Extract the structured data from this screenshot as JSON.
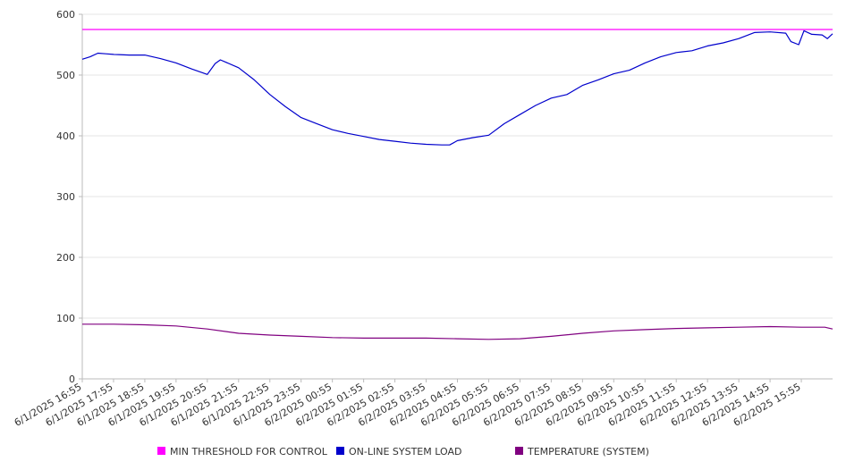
{
  "chart_data": {
    "type": "line",
    "title": "",
    "xlabel": "",
    "ylabel": "",
    "ylim": [
      0,
      600
    ],
    "yticks": [
      0,
      100,
      200,
      300,
      400,
      500,
      600
    ],
    "grid": true,
    "legend_position": "bottom",
    "x_tick_labels": [
      "6/1/2025 16:55",
      "6/1/2025 17:55",
      "6/1/2025 18:55",
      "6/1/2025 19:55",
      "6/1/2025 20:55",
      "6/1/2025 21:55",
      "6/1/2025 22:55",
      "6/1/2025 23:55",
      "6/2/2025 00:55",
      "6/2/2025 01:55",
      "6/2/2025 02:55",
      "6/2/2025 03:55",
      "6/2/2025 04:55",
      "6/2/2025 05:55",
      "6/2/2025 06:55",
      "6/2/2025 07:55",
      "6/2/2025 08:55",
      "6/2/2025 09:55",
      "6/2/2025 10:55",
      "6/2/2025 11:55",
      "6/2/2025 12:55",
      "6/2/2025 13:55",
      "6/2/2025 14:55",
      "6/2/2025 15:55"
    ],
    "x_start": "6/1/2025 16:55",
    "x_end": "6/2/2025 16:55",
    "series": [
      {
        "name": "MIN THRESHOLD FOR CONTROL",
        "color": "#ff00ff",
        "points": [
          [
            "6/1/2025 16:55",
            575
          ],
          [
            "6/2/2025 16:55",
            575
          ]
        ]
      },
      {
        "name": "ON-LINE SYSTEM LOAD",
        "color": "#0000cc",
        "points": [
          [
            "6/1/2025 16:55",
            526
          ],
          [
            "6/1/2025 17:10",
            530
          ],
          [
            "6/1/2025 17:25",
            536
          ],
          [
            "6/1/2025 17:40",
            535
          ],
          [
            "6/1/2025 17:55",
            534
          ],
          [
            "6/1/2025 18:25",
            533
          ],
          [
            "6/1/2025 18:55",
            533
          ],
          [
            "6/1/2025 19:25",
            527
          ],
          [
            "6/1/2025 19:55",
            520
          ],
          [
            "6/1/2025 20:25",
            510
          ],
          [
            "6/1/2025 20:55",
            501
          ],
          [
            "6/1/2025 21:10",
            519
          ],
          [
            "6/1/2025 21:20",
            525
          ],
          [
            "6/1/2025 21:55",
            512
          ],
          [
            "6/1/2025 22:25",
            492
          ],
          [
            "6/1/2025 22:55",
            468
          ],
          [
            "6/1/2025 23:25",
            448
          ],
          [
            "6/1/2025 23:55",
            430
          ],
          [
            "6/2/2025 00:25",
            420
          ],
          [
            "6/2/2025 00:55",
            410
          ],
          [
            "6/2/2025 01:25",
            404
          ],
          [
            "6/2/2025 01:55",
            399
          ],
          [
            "6/2/2025 02:25",
            394
          ],
          [
            "6/2/2025 02:55",
            391
          ],
          [
            "6/2/2025 03:25",
            388
          ],
          [
            "6/2/2025 03:55",
            386
          ],
          [
            "6/2/2025 04:25",
            385
          ],
          [
            "6/2/2025 04:40",
            385
          ],
          [
            "6/2/2025 04:55",
            392
          ],
          [
            "6/2/2025 05:25",
            397
          ],
          [
            "6/2/2025 05:55",
            401
          ],
          [
            "6/2/2025 06:25",
            420
          ],
          [
            "6/2/2025 06:55",
            435
          ],
          [
            "6/2/2025 07:25",
            450
          ],
          [
            "6/2/2025 07:55",
            462
          ],
          [
            "6/2/2025 08:25",
            468
          ],
          [
            "6/2/2025 08:55",
            483
          ],
          [
            "6/2/2025 09:25",
            492
          ],
          [
            "6/2/2025 09:55",
            502
          ],
          [
            "6/2/2025 10:25",
            508
          ],
          [
            "6/2/2025 10:55",
            520
          ],
          [
            "6/2/2025 11:25",
            530
          ],
          [
            "6/2/2025 11:55",
            537
          ],
          [
            "6/2/2025 12:25",
            540
          ],
          [
            "6/2/2025 12:55",
            548
          ],
          [
            "6/2/2025 13:25",
            553
          ],
          [
            "6/2/2025 13:55",
            560
          ],
          [
            "6/2/2025 14:25",
            570
          ],
          [
            "6/2/2025 14:55",
            571
          ],
          [
            "6/2/2025 15:25",
            569
          ],
          [
            "6/2/2025 15:35",
            555
          ],
          [
            "6/2/2025 15:50",
            550
          ],
          [
            "6/2/2025 16:00",
            573
          ],
          [
            "6/2/2025 16:15",
            567
          ],
          [
            "6/2/2025 16:35",
            566
          ],
          [
            "6/2/2025 16:45",
            560
          ],
          [
            "6/2/2025 16:55",
            568
          ]
        ]
      },
      {
        "name": "TEMPERATURE (SYSTEM)",
        "color": "#800080",
        "points": [
          [
            "6/1/2025 16:55",
            90
          ],
          [
            "6/1/2025 17:55",
            90
          ],
          [
            "6/1/2025 18:55",
            89
          ],
          [
            "6/1/2025 19:55",
            87
          ],
          [
            "6/1/2025 20:55",
            82
          ],
          [
            "6/1/2025 21:55",
            75
          ],
          [
            "6/1/2025 22:55",
            72
          ],
          [
            "6/1/2025 23:55",
            70
          ],
          [
            "6/2/2025 00:55",
            68
          ],
          [
            "6/2/2025 01:55",
            67
          ],
          [
            "6/2/2025 02:55",
            67
          ],
          [
            "6/2/2025 03:55",
            67
          ],
          [
            "6/2/2025 04:55",
            66
          ],
          [
            "6/2/2025 05:55",
            65
          ],
          [
            "6/2/2025 06:55",
            66
          ],
          [
            "6/2/2025 07:55",
            70
          ],
          [
            "6/2/2025 08:55",
            75
          ],
          [
            "6/2/2025 09:55",
            79
          ],
          [
            "6/2/2025 10:55",
            81
          ],
          [
            "6/2/2025 11:55",
            83
          ],
          [
            "6/2/2025 12:55",
            84
          ],
          [
            "6/2/2025 13:55",
            85
          ],
          [
            "6/2/2025 14:55",
            86
          ],
          [
            "6/2/2025 15:55",
            85
          ],
          [
            "6/2/2025 16:40",
            85
          ],
          [
            "6/2/2025 16:55",
            82
          ]
        ]
      }
    ]
  }
}
